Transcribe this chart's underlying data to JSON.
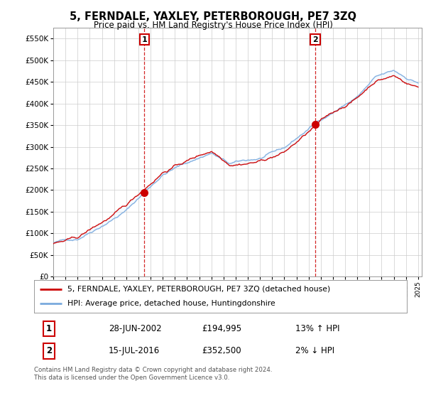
{
  "title": "5, FERNDALE, YAXLEY, PETERBOROUGH, PE7 3ZQ",
  "subtitle": "Price paid vs. HM Land Registry's House Price Index (HPI)",
  "ylim": [
    0,
    575000
  ],
  "yticks": [
    0,
    50000,
    100000,
    150000,
    200000,
    250000,
    300000,
    350000,
    400000,
    450000,
    500000,
    550000
  ],
  "xstart_year": 1995,
  "xend_year": 2025,
  "sale1_date": 2002.49,
  "sale1_price": 194995,
  "sale2_date": 2016.54,
  "sale2_price": 352500,
  "sale1_label": "1",
  "sale2_label": "2",
  "line_color_sale": "#cc0000",
  "line_color_hpi": "#7aaadd",
  "fill_color_hpi": "#ddeeff",
  "legend_label_sale": "5, FERNDALE, YAXLEY, PETERBOROUGH, PE7 3ZQ (detached house)",
  "legend_label_hpi": "HPI: Average price, detached house, Huntingdonshire",
  "table_row1": [
    "1",
    "28-JUN-2002",
    "£194,995",
    "13% ↑ HPI"
  ],
  "table_row2": [
    "2",
    "15-JUL-2016",
    "£352,500",
    "2% ↓ HPI"
  ],
  "footer": "Contains HM Land Registry data © Crown copyright and database right 2024.\nThis data is licensed under the Open Government Licence v3.0.",
  "bg_color": "#ffffff",
  "grid_color": "#cccccc"
}
